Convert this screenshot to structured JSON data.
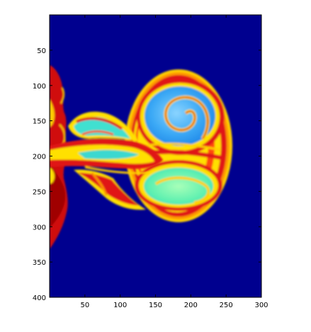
{
  "chart_data": {
    "type": "heatmap",
    "title": "",
    "xlabel": "",
    "ylabel": "",
    "xlim": [
      0,
      300
    ],
    "ylim": [
      0,
      400
    ],
    "y_direction": "top-to-bottom",
    "x_ticks": [
      50,
      100,
      150,
      200,
      250,
      300
    ],
    "y_ticks": [
      50,
      100,
      150,
      200,
      250,
      300,
      350,
      400
    ],
    "colormap": "jet",
    "background_color": "#00008f",
    "grid": false,
    "legend": "none",
    "colors": {
      "dark_blue": "#00008f",
      "blue": "#1e90ff",
      "light_blue": "#5ab8f0",
      "cyan": "#40e0d0",
      "yellow": "#ffe000",
      "orange": "#ff9a00",
      "red": "#dd1010",
      "dark_red": "#a00000"
    }
  }
}
